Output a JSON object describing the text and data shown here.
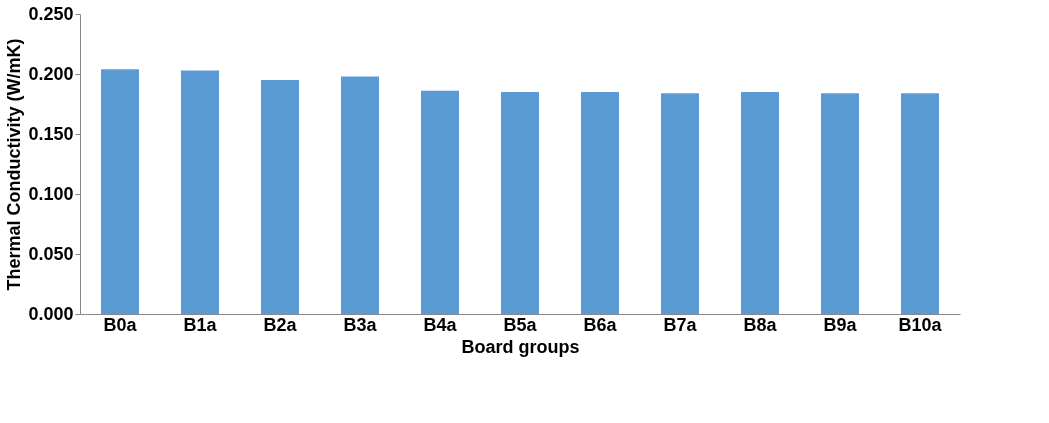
{
  "chart_data": {
    "type": "bar",
    "xlabel": "Board groups",
    "ylabel": "Thermal Conductivity (W/mK)",
    "categories": [
      "B0a",
      "B1a",
      "B2a",
      "B3a",
      "B4a",
      "B5a",
      "B6a",
      "B7a",
      "B8a",
      "B9a",
      "B10a"
    ],
    "values": [
      0.204,
      0.203,
      0.195,
      0.198,
      0.186,
      0.185,
      0.185,
      0.184,
      0.185,
      0.184,
      0.184
    ],
    "color": "#5b9bd5",
    "ylim": [
      0,
      0.25
    ],
    "yticks": [
      {
        "value": 0,
        "label": "0.000"
      },
      {
        "value": 0.05,
        "label": "0.050"
      },
      {
        "value": 0.1,
        "label": "0.100"
      },
      {
        "value": 0.15,
        "label": "0.150"
      },
      {
        "value": 0.2,
        "label": "0.200"
      },
      {
        "value": 0.25,
        "label": "0.250"
      }
    ],
    "grid": false
  }
}
